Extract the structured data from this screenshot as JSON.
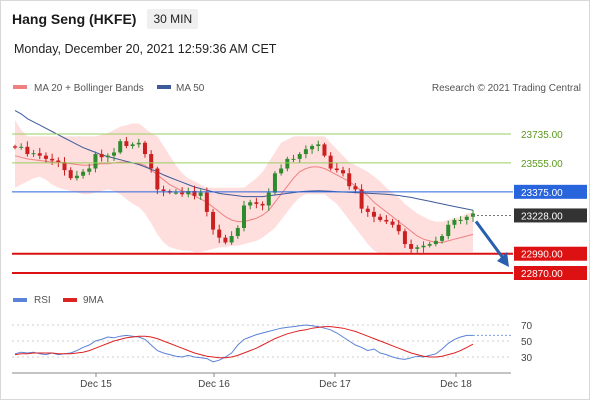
{
  "header": {
    "title": "Hang Seng (HKFE)",
    "timeframe": "30 MIN",
    "date": "Monday, December 20, 2021 12:59:36 AM CET"
  },
  "legend": {
    "ma20": "MA 20 + Bollinger Bands",
    "ma50": "MA 50",
    "credit": "Research © 2021 Trading Central",
    "rsi": "RSI",
    "rsi_ma": "9MA"
  },
  "colors": {
    "ma20": "#f08080",
    "ma50": "#3d5a99",
    "band": "#ffdede",
    "up": "#2e8b2e",
    "down": "#cc2020",
    "resistance": "#9acd60",
    "pivot": "#2864dc",
    "support": "#dd1111",
    "current": "#333333",
    "rsi": "#5a82d8",
    "rsi_ma": "#dd2222"
  },
  "chart_data": [
    {
      "type": "candlestick",
      "x_ticks": [
        "Dec 15",
        "Dec 16",
        "Dec 17",
        "Dec 18"
      ],
      "ylim": [
        22870,
        23940
      ],
      "levels": [
        {
          "value": 23735,
          "label": "23735.00",
          "kind": "resistance"
        },
        {
          "value": 23555,
          "label": "23555.00",
          "kind": "resistance"
        },
        {
          "value": 23375,
          "label": "23375.00",
          "kind": "pivot"
        },
        {
          "value": 23228,
          "label": "23228.00",
          "kind": "current"
        },
        {
          "value": 22990,
          "label": "22990.00",
          "kind": "support"
        },
        {
          "value": 22870,
          "label": "22870.00",
          "kind": "support"
        }
      ],
      "forecast": {
        "from": 23228,
        "to": 22870,
        "direction": "down"
      },
      "close": [
        23650,
        23655,
        23610,
        23615,
        23600,
        23580,
        23570,
        23560,
        23510,
        23460,
        23475,
        23500,
        23520,
        23610,
        23590,
        23600,
        23620,
        23690,
        23660,
        23670,
        23680,
        23610,
        23520,
        23390,
        23380,
        23370,
        23370,
        23360,
        23380,
        23350,
        23370,
        23250,
        23140,
        23090,
        23060,
        23100,
        23150,
        23290,
        23310,
        23300,
        23290,
        23370,
        23490,
        23520,
        23580,
        23580,
        23610,
        23640,
        23660,
        23670,
        23600,
        23520,
        23510,
        23490,
        23410,
        23390,
        23270,
        23250,
        23220,
        23200,
        23190,
        23170,
        23130,
        23050,
        23020,
        23030,
        23040,
        23050,
        23070,
        23100,
        23170,
        23200,
        23200,
        23220,
        23240
      ],
      "ma20": [
        23600,
        23590,
        23580,
        23575,
        23570,
        23565,
        23560,
        23560,
        23555,
        23550,
        23545,
        23540,
        23540,
        23545,
        23550,
        23550,
        23555,
        23560,
        23560,
        23555,
        23550,
        23540,
        23510,
        23480,
        23450,
        23420,
        23400,
        23380,
        23370,
        23350,
        23330,
        23310,
        23280,
        23250,
        23220,
        23200,
        23190,
        23190,
        23200,
        23210,
        23230,
        23260,
        23310,
        23360,
        23410,
        23460,
        23500,
        23520,
        23530,
        23530,
        23520,
        23500,
        23480,
        23460,
        23440,
        23410,
        23380,
        23350,
        23310,
        23280,
        23250,
        23220,
        23190,
        23160,
        23130,
        23100,
        23080,
        23070,
        23060,
        23060,
        23070,
        23080,
        23090,
        23100,
        23110
      ],
      "ma50": [
        23880,
        23860,
        23830,
        23810,
        23790,
        23770,
        23750,
        23730,
        23710,
        23690,
        23670,
        23650,
        23635,
        23620,
        23605,
        23595,
        23585,
        23575,
        23565,
        23555,
        23545,
        23530,
        23515,
        23500,
        23480,
        23465,
        23450,
        23435,
        23420,
        23405,
        23395,
        23385,
        23375,
        23365,
        23360,
        23355,
        23350,
        23345,
        23345,
        23345,
        23345,
        23350,
        23355,
        23360,
        23365,
        23370,
        23375,
        23378,
        23380,
        23382,
        23380,
        23378,
        23376,
        23374,
        23372,
        23370,
        23368,
        23366,
        23364,
        23362,
        23360,
        23356,
        23352,
        23346,
        23340,
        23332,
        23324,
        23316,
        23308,
        23300,
        23292,
        23284,
        23276,
        23268,
        23260
      ],
      "band_upper": [
        23820,
        23760,
        23720,
        23720,
        23720,
        23720,
        23720,
        23720,
        23720,
        23720,
        23720,
        23720,
        23720,
        23720,
        23730,
        23740,
        23760,
        23780,
        23790,
        23800,
        23800,
        23770,
        23740,
        23720,
        23660,
        23600,
        23540,
        23490,
        23460,
        23440,
        23420,
        23400,
        23400,
        23400,
        23400,
        23400,
        23400,
        23400,
        23430,
        23460,
        23500,
        23560,
        23620,
        23680,
        23700,
        23720,
        23720,
        23720,
        23720,
        23720,
        23720,
        23680,
        23640,
        23600,
        23560,
        23540,
        23520,
        23500,
        23470,
        23440,
        23400,
        23370,
        23340,
        23300,
        23270,
        23240,
        23220,
        23200,
        23190,
        23190,
        23200,
        23210,
        23220,
        23240,
        23250
      ],
      "band_lower": [
        23400,
        23420,
        23440,
        23460,
        23470,
        23450,
        23420,
        23400,
        23390,
        23380,
        23370,
        23360,
        23360,
        23370,
        23380,
        23390,
        23380,
        23360,
        23330,
        23300,
        23280,
        23240,
        23180,
        23110,
        23060,
        23030,
        23020,
        23010,
        23010,
        23000,
        23000,
        23010,
        23020,
        23030,
        23030,
        23040,
        23040,
        23050,
        23060,
        23070,
        23090,
        23120,
        23150,
        23200,
        23250,
        23300,
        23340,
        23360,
        23360,
        23360,
        23360,
        23330,
        23300,
        23250,
        23200,
        23150,
        23100,
        23050,
        23010,
        22990,
        22980,
        22980,
        22980,
        22990,
        23000,
        23000,
        23000,
        23000,
        23000,
        23000,
        23000,
        23000,
        23000,
        23000,
        23000
      ]
    },
    {
      "type": "line",
      "name": "RSI",
      "y_ticks": [
        70,
        50,
        30
      ],
      "ylim": [
        15,
        85
      ],
      "rsi": [
        34,
        36,
        35,
        36,
        34,
        33,
        35,
        33,
        34,
        35,
        38,
        42,
        45,
        50,
        52,
        55,
        54,
        56,
        57,
        56,
        55,
        52,
        45,
        38,
        35,
        33,
        31,
        30,
        32,
        30,
        29,
        28,
        24,
        26,
        30,
        35,
        45,
        52,
        55,
        58,
        60,
        62,
        64,
        66,
        67,
        68,
        69,
        70,
        69,
        68,
        66,
        64,
        60,
        55,
        50,
        45,
        42,
        38,
        40,
        35,
        33,
        30,
        28,
        27,
        29,
        31,
        30,
        32,
        34,
        40,
        47,
        52,
        55,
        57,
        57
      ],
      "rsi_ma": [
        33,
        34,
        34,
        35,
        35,
        35,
        35,
        34,
        34,
        34,
        35,
        36,
        38,
        41,
        44,
        47,
        50,
        52,
        54,
        55,
        56,
        56,
        55,
        53,
        50,
        47,
        44,
        41,
        38,
        35,
        33,
        31,
        30,
        29,
        29,
        30,
        32,
        35,
        38,
        41,
        45,
        49,
        53,
        56,
        59,
        61,
        63,
        64,
        66,
        67,
        68,
        68,
        67,
        66,
        64,
        62,
        59,
        56,
        53,
        50,
        47,
        44,
        41,
        38,
        35,
        33,
        31,
        30,
        30,
        31,
        33,
        35,
        38,
        42,
        46
      ]
    }
  ]
}
